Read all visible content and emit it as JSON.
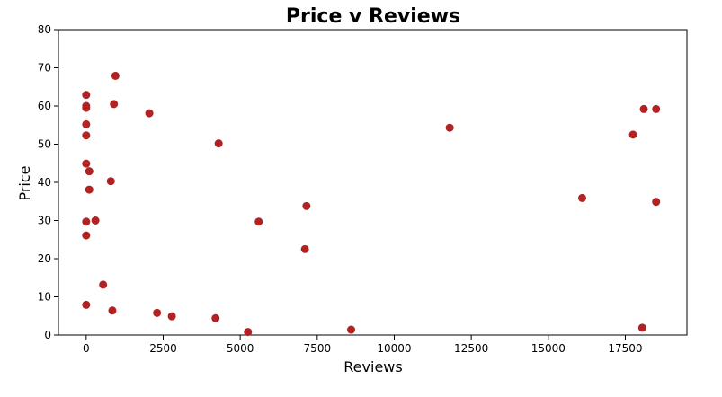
{
  "chart_data": {
    "type": "scatter",
    "title": "Price v Reviews",
    "xlabel": "Reviews",
    "ylabel": "Price",
    "xlim": [
      -900,
      19500
    ],
    "ylim": [
      0,
      80
    ],
    "xticks": [
      0,
      2500,
      5000,
      7500,
      10000,
      12500,
      15000,
      17500
    ],
    "xtick_labels": [
      "0",
      "2500",
      "5000",
      "7500",
      "10000",
      "12500",
      "15000",
      "17500"
    ],
    "yticks": [
      0,
      10,
      20,
      30,
      40,
      50,
      60,
      70,
      80
    ],
    "ytick_labels": [
      "0",
      "10",
      "20",
      "30",
      "40",
      "50",
      "60",
      "70",
      "80"
    ],
    "grid": false,
    "marker_color": "#b22222",
    "points": [
      {
        "x": 0,
        "y": 62.9
      },
      {
        "x": 0,
        "y": 60.0
      },
      {
        "x": 0,
        "y": 59.5
      },
      {
        "x": 0,
        "y": 55.2
      },
      {
        "x": 0,
        "y": 52.3
      },
      {
        "x": 0,
        "y": 44.9
      },
      {
        "x": 100,
        "y": 42.9
      },
      {
        "x": 100,
        "y": 38.1
      },
      {
        "x": 0,
        "y": 29.7
      },
      {
        "x": 300,
        "y": 30.0
      },
      {
        "x": 0,
        "y": 26.1
      },
      {
        "x": 550,
        "y": 13.2
      },
      {
        "x": 0,
        "y": 7.9
      },
      {
        "x": 850,
        "y": 6.4
      },
      {
        "x": 950,
        "y": 67.9
      },
      {
        "x": 900,
        "y": 60.5
      },
      {
        "x": 800,
        "y": 40.3
      },
      {
        "x": 2050,
        "y": 58.1
      },
      {
        "x": 2300,
        "y": 5.8
      },
      {
        "x": 2780,
        "y": 4.9
      },
      {
        "x": 4200,
        "y": 4.4
      },
      {
        "x": 4300,
        "y": 50.2
      },
      {
        "x": 5250,
        "y": 0.8
      },
      {
        "x": 5600,
        "y": 29.7
      },
      {
        "x": 7100,
        "y": 22.5
      },
      {
        "x": 7150,
        "y": 33.8
      },
      {
        "x": 8600,
        "y": 1.4
      },
      {
        "x": 11800,
        "y": 54.3
      },
      {
        "x": 16100,
        "y": 35.9
      },
      {
        "x": 17750,
        "y": 52.5
      },
      {
        "x": 18050,
        "y": 1.9
      },
      {
        "x": 18100,
        "y": 59.2
      },
      {
        "x": 18500,
        "y": 59.2
      },
      {
        "x": 18500,
        "y": 34.9
      }
    ]
  }
}
